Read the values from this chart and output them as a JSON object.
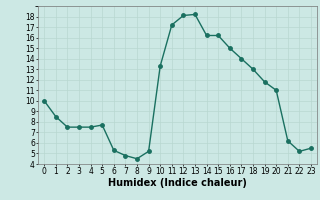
{
  "x": [
    0,
    1,
    2,
    3,
    4,
    5,
    6,
    7,
    8,
    9,
    10,
    11,
    12,
    13,
    14,
    15,
    16,
    17,
    18,
    19,
    20,
    21,
    22,
    23
  ],
  "y": [
    10,
    8.5,
    7.5,
    7.5,
    7.5,
    7.7,
    5.3,
    4.8,
    4.5,
    5.2,
    13.3,
    17.2,
    18.1,
    18.2,
    16.2,
    16.2,
    15.0,
    14.0,
    13.0,
    11.8,
    11.0,
    6.2,
    5.2,
    5.5
  ],
  "line_color": "#1a7060",
  "marker": "o",
  "marker_size": 2.5,
  "linewidth": 1.0,
  "xlabel": "Humidex (Indice chaleur)",
  "xlabel_fontsize": 7,
  "xlim": [
    -0.5,
    23.5
  ],
  "ylim": [
    4,
    19
  ],
  "yticks": [
    4,
    5,
    6,
    7,
    8,
    9,
    10,
    11,
    12,
    13,
    14,
    15,
    16,
    17,
    18
  ],
  "xticks": [
    0,
    1,
    2,
    3,
    4,
    5,
    6,
    7,
    8,
    9,
    10,
    11,
    12,
    13,
    14,
    15,
    16,
    17,
    18,
    19,
    20,
    21,
    22,
    23
  ],
  "grid_color": "#b8d8d0",
  "bg_color": "#cce8e4",
  "fig_bg_color": "#cce8e4",
  "tick_fontsize": 5.5
}
